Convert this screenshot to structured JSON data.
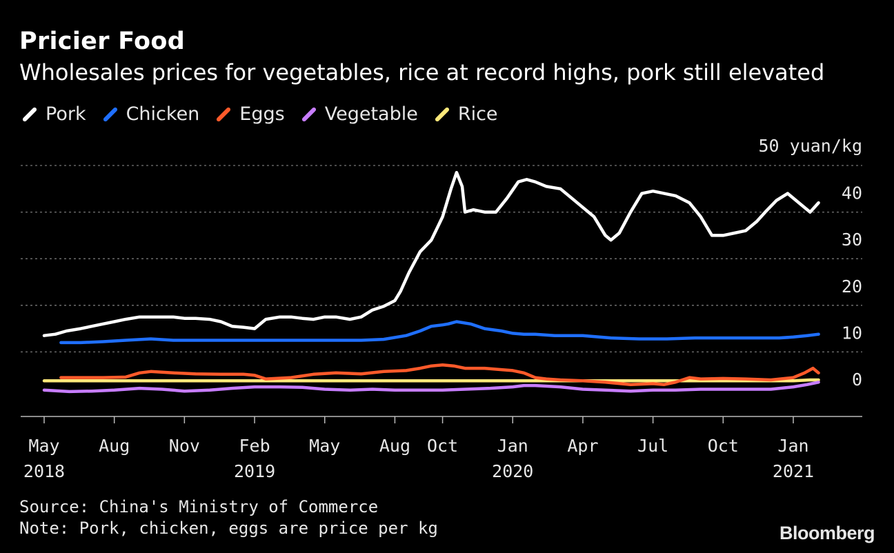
{
  "header": {
    "title": "Pricier Food",
    "subtitle": "Wholesales prices for vegetables, rice at record highs, pork still elevated"
  },
  "footer": {
    "source": "Source: China's Ministry of Commerce",
    "note": "Note: Pork, chicken, eggs are price per kg",
    "brand": "Bloomberg"
  },
  "chart_data": {
    "type": "line",
    "unit_label": "50 yuan/kg",
    "ylim": [
      0,
      50
    ],
    "yticks": [
      0,
      10,
      20,
      30,
      40,
      50
    ],
    "ytick_labels": [
      "0",
      "10",
      "20",
      "30",
      "40",
      ""
    ],
    "xlim": [
      2018.33,
      2021.15
    ],
    "xticks": [
      {
        "x": 2018.33,
        "label": "May",
        "year": "2018"
      },
      {
        "x": 2018.58,
        "label": "Aug",
        "year": ""
      },
      {
        "x": 2018.83,
        "label": "Nov",
        "year": ""
      },
      {
        "x": 2019.08,
        "label": "Feb",
        "year": "2019"
      },
      {
        "x": 2019.33,
        "label": "May",
        "year": ""
      },
      {
        "x": 2019.58,
        "label": "Aug",
        "year": ""
      },
      {
        "x": 2019.75,
        "label": "Oct",
        "year": ""
      },
      {
        "x": 2020.0,
        "label": "Jan",
        "year": "2020"
      },
      {
        "x": 2020.25,
        "label": "Apr",
        "year": ""
      },
      {
        "x": 2020.5,
        "label": "Jul",
        "year": ""
      },
      {
        "x": 2020.75,
        "label": "Oct",
        "year": ""
      },
      {
        "x": 2021.0,
        "label": "Jan",
        "year": "2021"
      }
    ],
    "grid": true,
    "legend_position": "top-left",
    "series": [
      {
        "name": "Pork",
        "color": "#ffffff",
        "x": [
          2018.33,
          2018.37,
          2018.41,
          2018.46,
          2018.5,
          2018.54,
          2018.58,
          2018.62,
          2018.67,
          2018.71,
          2018.75,
          2018.79,
          2018.83,
          2018.87,
          2018.92,
          2018.96,
          2019.0,
          2019.04,
          2019.08,
          2019.12,
          2019.17,
          2019.21,
          2019.25,
          2019.29,
          2019.33,
          2019.37,
          2019.42,
          2019.46,
          2019.5,
          2019.54,
          2019.58,
          2019.6,
          2019.63,
          2019.67,
          2019.71,
          2019.75,
          2019.78,
          2019.8,
          2019.82,
          2019.83,
          2019.86,
          2019.9,
          2019.94,
          2019.98,
          2020.02,
          2020.05,
          2020.08,
          2020.12,
          2020.17,
          2020.21,
          2020.25,
          2020.29,
          2020.33,
          2020.35,
          2020.38,
          2020.42,
          2020.46,
          2020.5,
          2020.54,
          2020.58,
          2020.63,
          2020.67,
          2020.71,
          2020.75,
          2020.79,
          2020.83,
          2020.87,
          2020.9,
          2020.94,
          2020.98,
          2021.02,
          2021.06,
          2021.09
        ],
        "y": [
          13.5,
          13.8,
          14.5,
          15.0,
          15.5,
          16.0,
          16.5,
          17.0,
          17.5,
          17.5,
          17.5,
          17.5,
          17.2,
          17.2,
          17.0,
          16.5,
          15.5,
          15.3,
          15.0,
          17.0,
          17.5,
          17.5,
          17.2,
          17.0,
          17.5,
          17.5,
          17.0,
          17.5,
          19.0,
          19.8,
          21.0,
          23.0,
          27.0,
          31.5,
          34.0,
          39.0,
          45.0,
          48.5,
          45.5,
          40.0,
          40.5,
          40.0,
          40.0,
          43.0,
          46.5,
          47.0,
          46.5,
          45.5,
          45.0,
          43.0,
          41.0,
          39.0,
          35.0,
          34.0,
          35.5,
          40.0,
          44.0,
          44.5,
          44.0,
          43.5,
          42.0,
          39.0,
          35.0,
          35.0,
          35.5,
          36.0,
          38.0,
          40.0,
          42.5,
          44.0,
          42.0,
          40.0,
          42.0
        ]
      },
      {
        "name": "Chicken",
        "color": "#1f6fff",
        "x": [
          2018.39,
          2018.46,
          2018.54,
          2018.62,
          2018.71,
          2018.79,
          2018.87,
          2018.96,
          2019.04,
          2019.12,
          2019.21,
          2019.29,
          2019.37,
          2019.46,
          2019.54,
          2019.62,
          2019.67,
          2019.71,
          2019.75,
          2019.77,
          2019.8,
          2019.85,
          2019.9,
          2019.96,
          2020.0,
          2020.04,
          2020.08,
          2020.15,
          2020.25,
          2020.35,
          2020.45,
          2020.55,
          2020.65,
          2020.75,
          2020.85,
          2020.95,
          2021.0,
          2021.05,
          2021.09
        ],
        "y": [
          12.0,
          12.0,
          12.2,
          12.5,
          12.8,
          12.5,
          12.5,
          12.5,
          12.5,
          12.5,
          12.5,
          12.5,
          12.5,
          12.5,
          12.7,
          13.5,
          14.5,
          15.5,
          15.8,
          16.0,
          16.5,
          16.0,
          15.0,
          14.5,
          14.0,
          13.8,
          13.8,
          13.5,
          13.5,
          13.0,
          12.8,
          12.8,
          13.0,
          13.0,
          13.0,
          13.0,
          13.2,
          13.5,
          13.8
        ]
      },
      {
        "name": "Eggs",
        "color": "#ff5a2a",
        "x": [
          2018.39,
          2018.46,
          2018.54,
          2018.62,
          2018.67,
          2018.71,
          2018.79,
          2018.87,
          2018.96,
          2019.04,
          2019.08,
          2019.12,
          2019.21,
          2019.29,
          2019.37,
          2019.46,
          2019.54,
          2019.62,
          2019.67,
          2019.71,
          2019.75,
          2019.79,
          2019.83,
          2019.9,
          2019.96,
          2020.0,
          2020.04,
          2020.08,
          2020.12,
          2020.17,
          2020.25,
          2020.33,
          2020.42,
          2020.5,
          2020.54,
          2020.58,
          2020.63,
          2020.67,
          2020.75,
          2020.83,
          2020.92,
          2021.0,
          2021.04,
          2021.07,
          2021.09
        ],
        "y": [
          4.5,
          4.5,
          4.5,
          4.6,
          5.5,
          5.8,
          5.5,
          5.3,
          5.2,
          5.2,
          5.0,
          4.2,
          4.5,
          5.2,
          5.5,
          5.3,
          5.8,
          6.0,
          6.5,
          7.0,
          7.2,
          7.0,
          6.5,
          6.5,
          6.2,
          6.0,
          5.5,
          4.5,
          4.2,
          4.0,
          3.8,
          3.5,
          3.0,
          3.2,
          3.0,
          3.5,
          4.5,
          4.2,
          4.3,
          4.2,
          4.0,
          4.5,
          5.5,
          6.5,
          5.5
        ]
      },
      {
        "name": "Vegetable",
        "color": "#c77dff",
        "x": [
          2018.33,
          2018.42,
          2018.5,
          2018.58,
          2018.67,
          2018.75,
          2018.83,
          2018.92,
          2019.0,
          2019.08,
          2019.17,
          2019.25,
          2019.33,
          2019.42,
          2019.5,
          2019.58,
          2019.67,
          2019.75,
          2019.83,
          2019.92,
          2020.0,
          2020.04,
          2020.08,
          2020.17,
          2020.25,
          2020.33,
          2020.42,
          2020.5,
          2020.58,
          2020.67,
          2020.75,
          2020.83,
          2020.92,
          2021.0,
          2021.05,
          2021.09
        ],
        "y": [
          1.8,
          1.5,
          1.6,
          1.8,
          2.2,
          2.0,
          1.6,
          1.8,
          2.2,
          2.5,
          2.5,
          2.4,
          2.0,
          1.8,
          2.0,
          1.8,
          1.8,
          1.8,
          2.0,
          2.2,
          2.5,
          2.8,
          2.8,
          2.5,
          2.0,
          1.8,
          1.6,
          1.8,
          1.8,
          2.0,
          2.0,
          2.0,
          2.0,
          2.5,
          3.0,
          3.5
        ]
      },
      {
        "name": "Rice",
        "color": "#ffe97a",
        "x": [
          2018.33,
          2018.5,
          2018.75,
          2019.0,
          2019.25,
          2019.5,
          2019.75,
          2020.0,
          2020.25,
          2020.5,
          2020.75,
          2021.0,
          2021.06,
          2021.09
        ],
        "y": [
          3.8,
          3.8,
          3.8,
          3.8,
          3.8,
          3.8,
          3.8,
          3.8,
          3.8,
          3.8,
          3.8,
          3.8,
          4.0,
          4.0
        ]
      }
    ]
  }
}
